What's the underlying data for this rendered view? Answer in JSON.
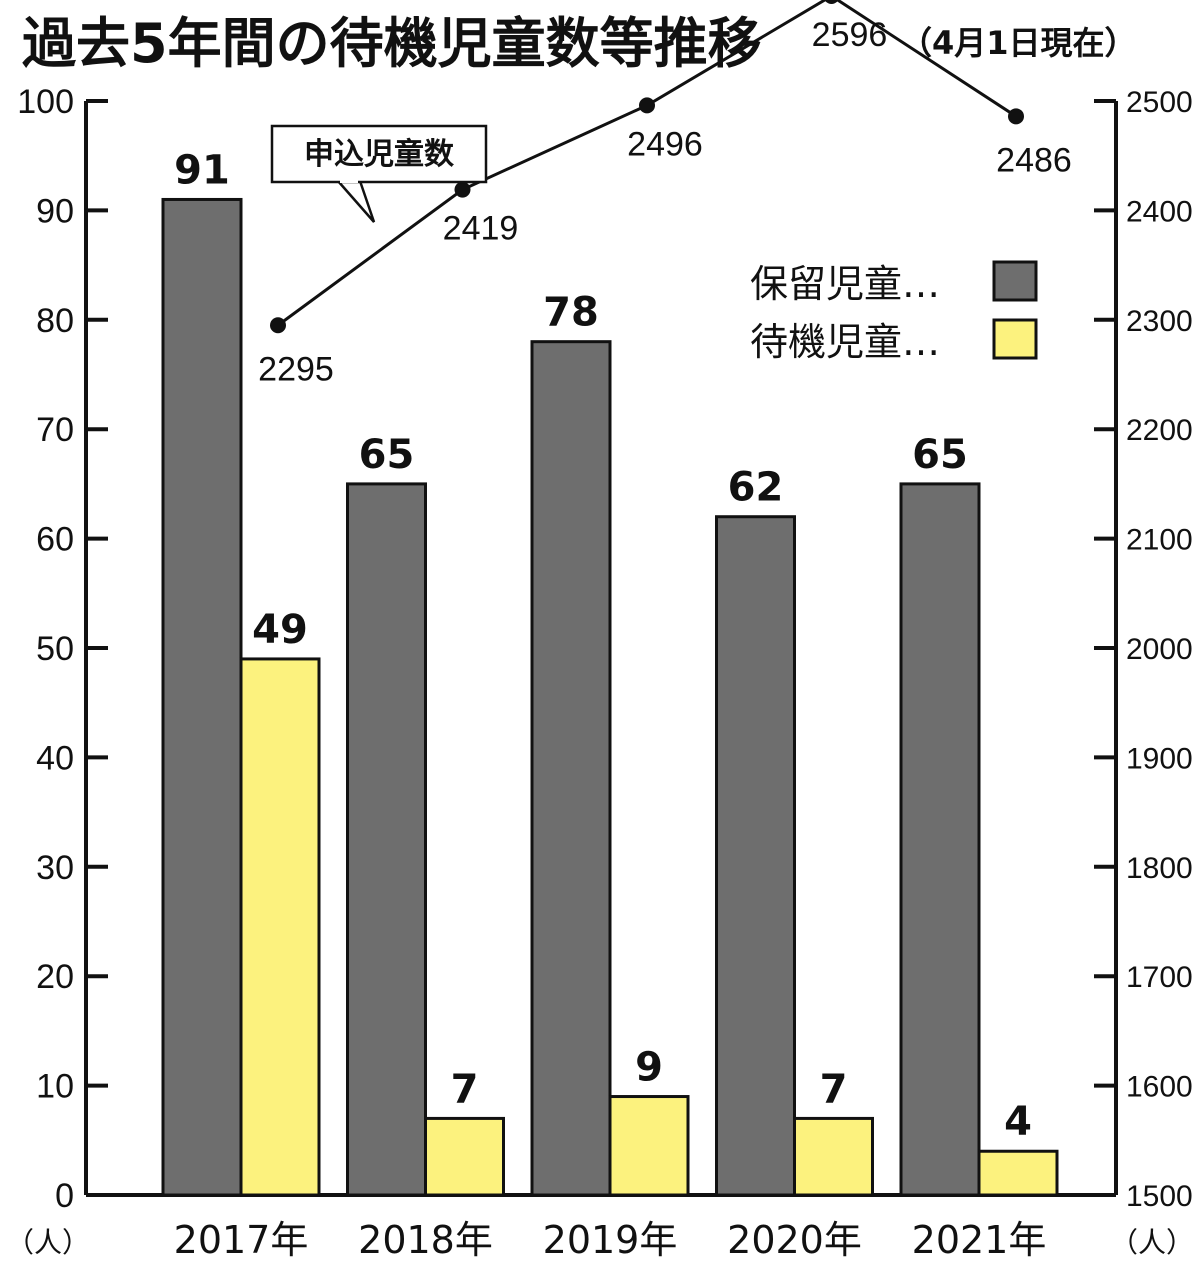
{
  "title": "過去5年間の待機児童数等推移",
  "subtitle": "（4月1日現在）",
  "colors": {
    "hold": "#6e6e6e",
    "waiting": "#fcf27e",
    "axis": "#111111"
  },
  "chart_data": {
    "type": "bar",
    "categories": [
      "2017年",
      "2018年",
      "2019年",
      "2020年",
      "2021年"
    ],
    "series": [
      {
        "name": "保留児童…",
        "axis": "left",
        "values": [
          91,
          65,
          78,
          62,
          65
        ]
      },
      {
        "name": "待機児童…",
        "axis": "left",
        "values": [
          49,
          7,
          9,
          7,
          4
        ]
      }
    ],
    "line_series": {
      "name": "申込児童数",
      "axis": "right",
      "values": [
        2295,
        2419,
        2496,
        2596,
        2486
      ]
    },
    "left_axis": {
      "unit": "（人）",
      "ylim": [
        0,
        100
      ],
      "ticks": [
        "0",
        "10",
        "20",
        "30",
        "40",
        "50",
        "60",
        "70",
        "80",
        "90",
        "100"
      ]
    },
    "right_axis": {
      "unit": "（人）",
      "ylim": [
        1500,
        2500
      ],
      "ticks": [
        "1500",
        "1600",
        "1700",
        "1800",
        "1900",
        "2000",
        "2100",
        "2200",
        "2300",
        "2400",
        "2500"
      ]
    },
    "legend": "right-middle",
    "grid": false
  }
}
